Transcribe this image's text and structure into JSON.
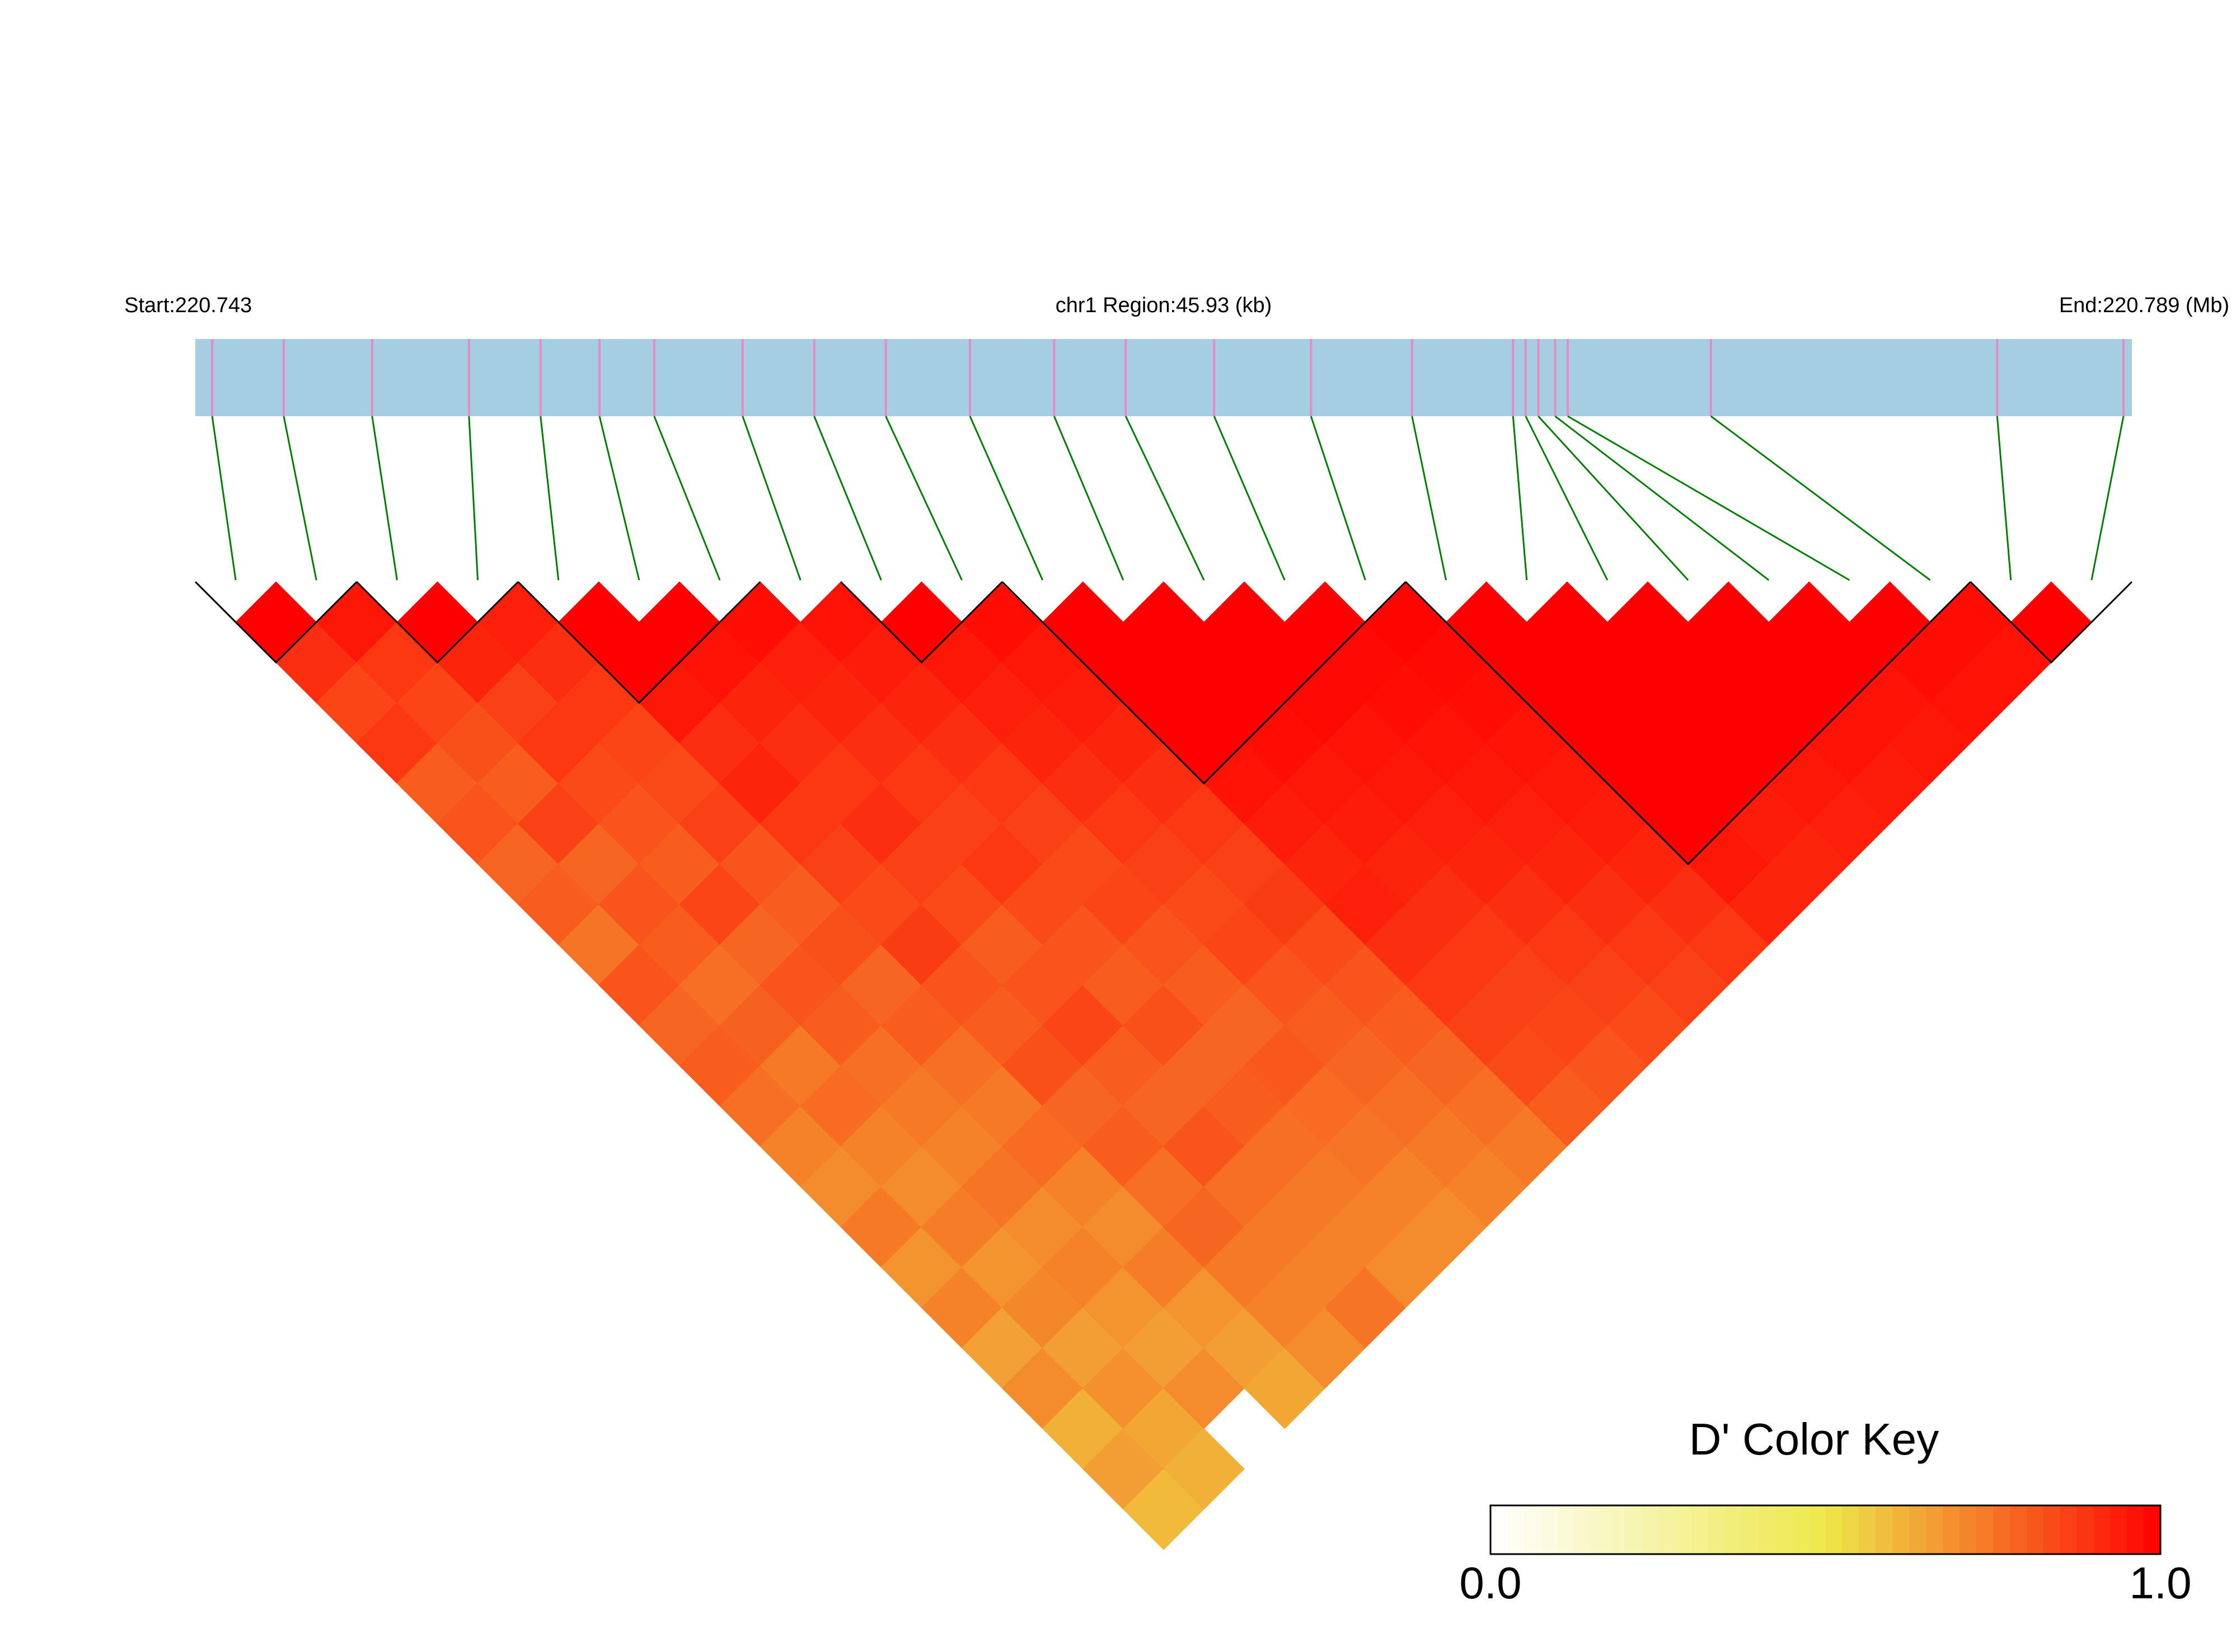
{
  "chart_data": {
    "type": "ld-heatmap",
    "start_label": "Start:220.743",
    "region_label": "chr1 Region:45.93 (kb)",
    "end_label": "End:220.789 (Mb)",
    "xlim": [
      220.743,
      220.789
    ],
    "positions": [
      220.7434,
      220.7451,
      220.7472,
      220.7495,
      220.7512,
      220.7526,
      220.7539,
      220.756,
      220.7577,
      220.7594,
      220.7614,
      220.7634,
      220.7651,
      220.7672,
      220.7695,
      220.7719,
      220.7743,
      220.7746,
      220.7749,
      220.7753,
      220.7756,
      220.779,
      220.7858,
      220.7888
    ],
    "d_prime": [
      [
        1,
        0.9,
        0.85,
        0.88,
        0.8,
        0.82,
        0.78,
        0.8,
        0.75,
        0.82,
        0.78,
        0.8,
        0.76,
        0.72,
        0.7,
        0.74,
        0.68,
        0.72,
        0.65,
        0.7,
        0.62,
        0.66,
        0.6
      ],
      [
        0.95,
        0.88,
        0.85,
        0.83,
        0.8,
        0.86,
        0.78,
        0.82,
        0.8,
        0.76,
        0.79,
        0.74,
        0.77,
        0.72,
        0.7,
        0.73,
        0.68,
        0.71,
        0.66,
        0.69,
        0.64,
        0.62
      ],
      [
        1,
        0.92,
        0.86,
        0.88,
        0.84,
        0.82,
        0.8,
        0.85,
        0.78,
        0.82,
        0.8,
        0.76,
        0.74,
        0.72,
        0.75,
        0.7,
        0.72,
        0.68,
        0.66,
        0.7
      ],
      [
        0.93,
        0.9,
        0.88,
        0.85,
        0.84,
        0.86,
        0.82,
        0.8,
        0.83,
        0.78,
        0.8,
        0.76,
        0.74,
        0.77,
        0.72,
        0.7,
        0.73,
        0.68,
        0.66,
        0.64
      ],
      [
        1,
        1,
        0.95,
        0.9,
        0.92,
        0.88,
        0.86,
        0.84,
        0.87,
        0.82,
        0.8,
        0.83,
        0.78,
        0.8,
        0.76,
        0.78,
        0.74,
        0.72,
        0.7
      ],
      [
        1,
        0.96,
        0.92,
        0.9,
        0.88,
        0.9,
        0.86,
        0.84,
        0.8,
        0.82,
        0.85,
        0.8,
        0.78,
        0.82,
        0.76,
        0.74,
        0.72,
        0.75
      ],
      [
        0.97,
        0.93,
        0.92,
        0.9,
        0.88,
        0.86,
        0.88,
        0.84,
        0.82,
        0.8,
        0.83,
        0.78,
        0.8,
        0.76,
        0.74,
        0.72,
        0.7
      ],
      [
        0.96,
        0.94,
        0.92,
        0.9,
        0.88,
        0.86,
        0.84,
        0.85,
        0.82,
        0.8,
        0.78,
        0.81,
        0.77,
        0.75,
        0.72,
        0.7
      ],
      [
        1,
        0.95,
        0.93,
        0.92,
        0.9,
        0.88,
        0.86,
        0.84,
        0.85,
        0.82,
        0.8,
        0.78,
        0.76,
        0.74,
        0.72
      ],
      [
        0.97,
        0.95,
        0.94,
        0.92,
        0.9,
        0.88,
        0.86,
        0.87,
        0.84,
        0.82,
        0.8,
        0.78,
        0.76,
        0.74
      ],
      [
        1,
        1,
        1,
        1,
        0.96,
        0.94,
        0.92,
        0.93,
        0.9,
        0.88,
        0.86,
        0.84,
        0.8
      ],
      [
        1,
        1,
        1,
        0.97,
        0.95,
        0.94,
        0.92,
        0.9,
        0.88,
        0.86,
        0.85,
        0.82
      ],
      [
        1,
        1,
        0.98,
        0.96,
        0.95,
        0.93,
        0.92,
        0.9,
        0.88,
        0.86,
        0.84
      ],
      [
        1,
        0.98,
        0.97,
        0.96,
        0.95,
        0.93,
        0.92,
        0.9,
        0.88,
        0.86
      ],
      [
        0.99,
        0.98,
        0.97,
        0.96,
        0.95,
        0.94,
        0.92,
        0.9,
        0.88
      ],
      [
        1,
        1,
        1,
        1,
        1,
        1,
        0.95,
        0.92
      ],
      [
        1,
        1,
        1,
        1,
        1,
        0.94,
        0.92
      ],
      [
        1,
        1,
        1,
        1,
        0.95,
        0.93
      ],
      [
        1,
        1,
        1,
        0.96,
        0.94
      ],
      [
        1,
        1,
        0.96,
        0.95
      ],
      [
        1,
        0.97,
        0.96
      ],
      [
        0.97,
        0.96
      ],
      [
        1
      ]
    ],
    "blocks": [
      [
        0,
        1
      ],
      [
        2,
        3
      ],
      [
        4,
        6
      ],
      [
        8,
        9
      ],
      [
        10,
        14
      ],
      [
        15,
        21
      ],
      [
        22,
        23
      ]
    ],
    "gene_color": "#a6cee3",
    "snp_color": "#e78ac3",
    "link_color": "#008000",
    "color_key": {
      "title": "D' Color Key",
      "colors": [
        "#ffffff",
        "#ede84a",
        "#ff0000"
      ],
      "lim": [
        0,
        1
      ],
      "ticks": [
        {
          "value": 0,
          "label": "0.0"
        },
        {
          "value": 1,
          "label": "1.0"
        }
      ]
    }
  }
}
